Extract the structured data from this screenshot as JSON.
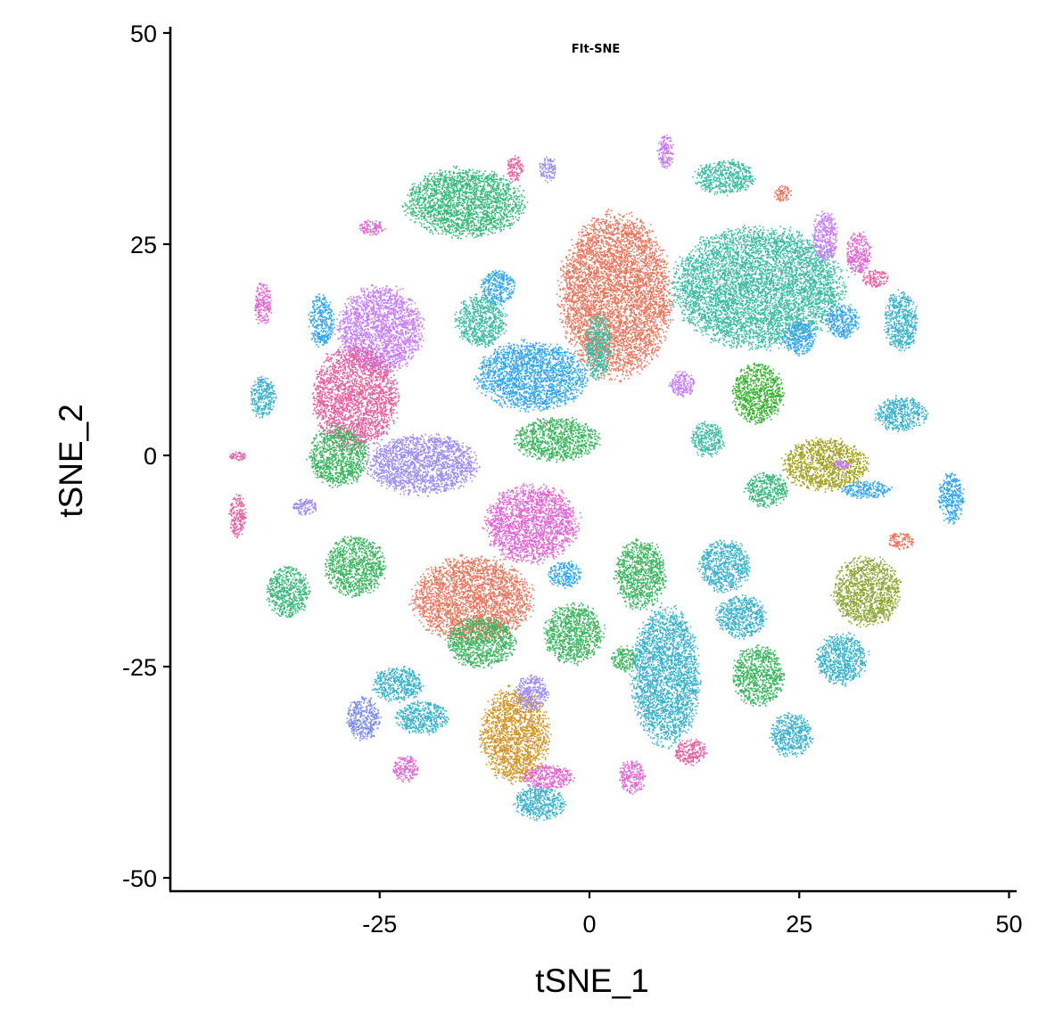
{
  "chart_data": {
    "type": "scatter",
    "title": "FIt-SNE",
    "xlabel": "tSNE_1",
    "ylabel": "tSNE_2",
    "xlim": [
      -50,
      50
    ],
    "ylim": [
      -50,
      50
    ],
    "xticks": [
      -25,
      0,
      25,
      50
    ],
    "yticks": [
      50,
      25,
      0,
      -25,
      -50
    ],
    "xtick_labels": [
      "-25",
      "0",
      "25",
      "50"
    ],
    "ytick_labels": [
      "50",
      "25",
      "0",
      "-25",
      "-50"
    ],
    "grid": false,
    "legend": "none",
    "clusters": [
      {
        "x": 3,
        "y": 19,
        "rx": 6.5,
        "ry": 9.5,
        "color": "#E9775E"
      },
      {
        "x": -14,
        "y": -17,
        "rx": 7,
        "ry": 5,
        "color": "#E9775E"
      },
      {
        "x": 20,
        "y": 20,
        "rx": 10,
        "ry": 7,
        "color": "#3EBCA4"
      },
      {
        "x": 16,
        "y": 33,
        "rx": 3.5,
        "ry": 2,
        "color": "#3EBCA4"
      },
      {
        "x": -15,
        "y": 30,
        "rx": 7,
        "ry": 4,
        "color": "#39B97A"
      },
      {
        "x": -25,
        "y": 15,
        "rx": 5,
        "ry": 5,
        "color": "#C77CFF"
      },
      {
        "x": -28,
        "y": 7,
        "rx": 5,
        "ry": 6,
        "color": "#E6609E"
      },
      {
        "x": -7,
        "y": -8,
        "rx": 5.5,
        "ry": 4.5,
        "color": "#E267D4"
      },
      {
        "x": -20,
        "y": -1,
        "rx": 6.5,
        "ry": 3.5,
        "color": "#9C8DF7"
      },
      {
        "x": -7,
        "y": 9.5,
        "rx": 6.5,
        "ry": 4,
        "color": "#35A7F1"
      },
      {
        "x": -13,
        "y": 16,
        "rx": 3,
        "ry": 3,
        "color": "#3EBCA4"
      },
      {
        "x": -4,
        "y": 2,
        "rx": 5,
        "ry": 2.5,
        "color": "#3DB660"
      },
      {
        "x": -30,
        "y": 0,
        "rx": 3.5,
        "ry": 3.5,
        "color": "#3DB660"
      },
      {
        "x": -28,
        "y": -13,
        "rx": 3.5,
        "ry": 3.5,
        "color": "#3DB660"
      },
      {
        "x": -13,
        "y": -22,
        "rx": 4,
        "ry": 3,
        "color": "#3DB660"
      },
      {
        "x": -2,
        "y": -21,
        "rx": 3.5,
        "ry": 3.5,
        "color": "#3DB660"
      },
      {
        "x": 6,
        "y": -14,
        "rx": 3,
        "ry": 4,
        "color": "#3DB660"
      },
      {
        "x": 9,
        "y": -26,
        "rx": 4,
        "ry": 8,
        "color": "#3BB2CC"
      },
      {
        "x": -9,
        "y": -33,
        "rx": 4,
        "ry": 5.5,
        "color": "#D2952A"
      },
      {
        "x": 28,
        "y": -1,
        "rx": 5,
        "ry": 3,
        "color": "#A3A11F"
      },
      {
        "x": 33,
        "y": -16,
        "rx": 4,
        "ry": 4,
        "color": "#8BA836"
      },
      {
        "x": 20,
        "y": 7.5,
        "rx": 3,
        "ry": 3.5,
        "color": "#39B132"
      },
      {
        "x": -39,
        "y": 7,
        "rx": 1.5,
        "ry": 2.5,
        "color": "#3BB2CC"
      },
      {
        "x": 20,
        "y": -26,
        "rx": 3,
        "ry": 3.5,
        "color": "#3DB660"
      },
      {
        "x": 30,
        "y": -24,
        "rx": 3,
        "ry": 3,
        "color": "#3BB2CC"
      },
      {
        "x": 24,
        "y": -33,
        "rx": 2.5,
        "ry": 2.5,
        "color": "#3BB2CC"
      },
      {
        "x": 16,
        "y": -13,
        "rx": 3,
        "ry": 3,
        "color": "#3BB2CC"
      },
      {
        "x": 18,
        "y": -19,
        "rx": 3,
        "ry": 2.5,
        "color": "#3BB2CC"
      },
      {
        "x": -20,
        "y": -31,
        "rx": 3,
        "ry": 2,
        "color": "#3BB2CC"
      },
      {
        "x": -23,
        "y": -27,
        "rx": 3,
        "ry": 2,
        "color": "#3BB2CC"
      },
      {
        "x": -6,
        "y": -41,
        "rx": 3,
        "ry": 2,
        "color": "#3BB2CC"
      },
      {
        "x": 37,
        "y": 16,
        "rx": 2,
        "ry": 3.5,
        "color": "#3BB2CC"
      },
      {
        "x": 37,
        "y": 5,
        "rx": 3,
        "ry": 2,
        "color": "#3BB2CC"
      },
      {
        "x": 43,
        "y": -5,
        "rx": 1.5,
        "ry": 3,
        "color": "#35A7F1"
      },
      {
        "x": 25,
        "y": 14,
        "rx": 2,
        "ry": 2,
        "color": "#35A7F1"
      },
      {
        "x": 30,
        "y": 16,
        "rx": 2,
        "ry": 2,
        "color": "#35A7F1"
      },
      {
        "x": -32,
        "y": 16,
        "rx": 1.5,
        "ry": 3,
        "color": "#35A7F1"
      },
      {
        "x": -11,
        "y": 20,
        "rx": 2,
        "ry": 2,
        "color": "#35A7F1"
      },
      {
        "x": -3,
        "y": -14,
        "rx": 2,
        "ry": 1.5,
        "color": "#35A7F1"
      },
      {
        "x": -27,
        "y": -31,
        "rx": 2,
        "ry": 2.5,
        "color": "#7E8EEB"
      },
      {
        "x": 11,
        "y": 8.5,
        "rx": 1.5,
        "ry": 1.5,
        "color": "#C77CFF"
      },
      {
        "x": 28,
        "y": 26,
        "rx": 1.5,
        "ry": 3,
        "color": "#C77CFF"
      },
      {
        "x": 32,
        "y": 24,
        "rx": 1.5,
        "ry": 2.5,
        "color": "#E267D4"
      },
      {
        "x": 34,
        "y": 21,
        "rx": 1.5,
        "ry": 1,
        "color": "#E6609E"
      },
      {
        "x": -39,
        "y": 18,
        "rx": 1,
        "ry": 2.5,
        "color": "#E267D4"
      },
      {
        "x": -42,
        "y": -7,
        "rx": 1,
        "ry": 2.5,
        "color": "#E6609E"
      },
      {
        "x": -36,
        "y": -16,
        "rx": 2.5,
        "ry": 3,
        "color": "#39B97A"
      },
      {
        "x": -5,
        "y": -38,
        "rx": 3,
        "ry": 1.5,
        "color": "#E267D4"
      },
      {
        "x": 5,
        "y": -38,
        "rx": 1.5,
        "ry": 2,
        "color": "#E267D4"
      },
      {
        "x": -22,
        "y": -37,
        "rx": 1.5,
        "ry": 1.5,
        "color": "#E267D4"
      },
      {
        "x": -7,
        "y": -28,
        "rx": 2,
        "ry": 2,
        "color": "#9C8DF7"
      },
      {
        "x": 12,
        "y": -35,
        "rx": 2,
        "ry": 1.5,
        "color": "#E6609E"
      },
      {
        "x": 4,
        "y": -24,
        "rx": 1.5,
        "ry": 1.5,
        "color": "#3DB660"
      },
      {
        "x": 1,
        "y": 13,
        "rx": 1.5,
        "ry": 4,
        "color": "#3EBCA4"
      },
      {
        "x": 14,
        "y": 2,
        "rx": 2,
        "ry": 2,
        "color": "#3EBCA4"
      },
      {
        "x": 21,
        "y": -4,
        "rx": 2.5,
        "ry": 2,
        "color": "#39B97A"
      },
      {
        "x": 33,
        "y": -4,
        "rx": 3,
        "ry": 1,
        "color": "#35A7F1"
      },
      {
        "x": 37,
        "y": -10,
        "rx": 1.5,
        "ry": 1,
        "color": "#E9775E"
      },
      {
        "x": -34,
        "y": -6,
        "rx": 1.5,
        "ry": 1,
        "color": "#9C8DF7"
      },
      {
        "x": 30,
        "y": -1,
        "rx": 1,
        "ry": 0.5,
        "color": "#C77CFF"
      },
      {
        "x": -42,
        "y": 0,
        "rx": 1,
        "ry": 0.5,
        "color": "#E6609E"
      },
      {
        "x": -9,
        "y": 34,
        "rx": 1,
        "ry": 1.5,
        "color": "#E6609E"
      },
      {
        "x": -5,
        "y": 34,
        "rx": 1,
        "ry": 1.5,
        "color": "#9C8DF7"
      },
      {
        "x": 9,
        "y": 36,
        "rx": 1,
        "ry": 2,
        "color": "#C77CFF"
      },
      {
        "x": 23,
        "y": 31,
        "rx": 1,
        "ry": 1,
        "color": "#E9775E"
      },
      {
        "x": -26,
        "y": 27,
        "rx": 1.5,
        "ry": 1,
        "color": "#E267D4"
      }
    ]
  }
}
